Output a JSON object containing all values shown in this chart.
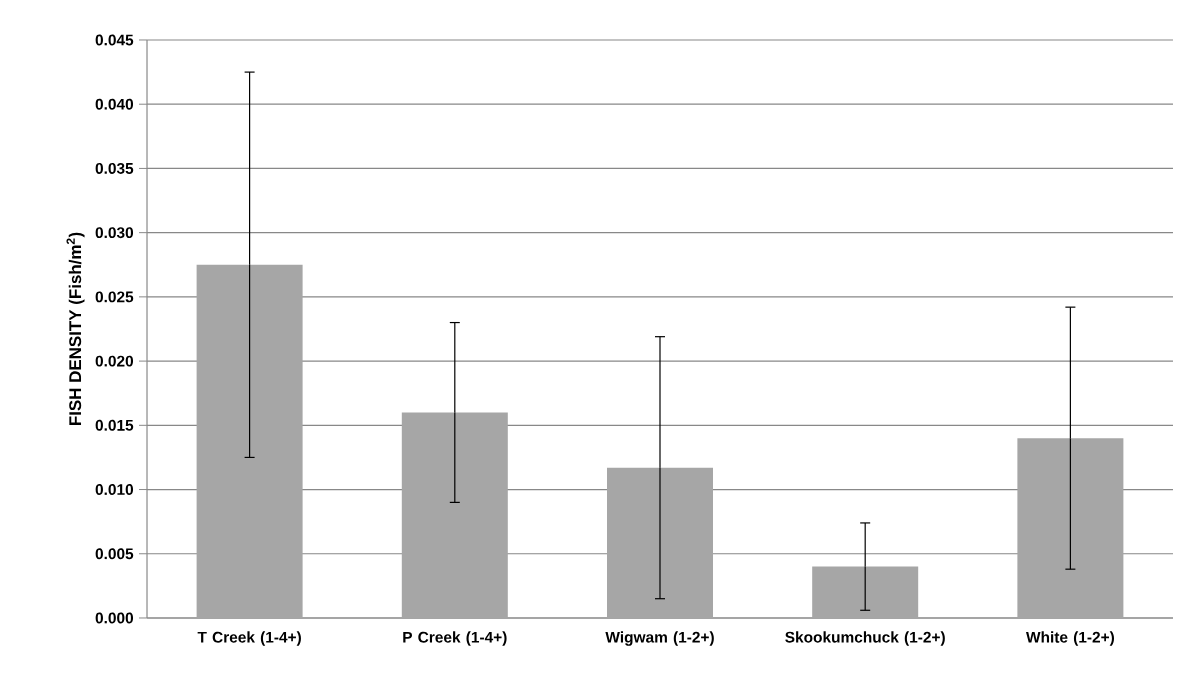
{
  "chart_data": {
    "type": "bar",
    "ylabel": "FISH DENSITY (Fish/m$^{2}$)",
    "categories": [
      "T Creek (1-4+)",
      "P Creek (1-4+)",
      "Wigwam (1-2+)",
      "Skookumchuck (1-2+)",
      "White (1-2+)"
    ],
    "values": [
      0.0275,
      0.016,
      0.0117,
      0.004,
      0.014
    ],
    "errors": [
      0.015,
      0.007,
      0.0102,
      0.0034,
      0.0102
    ],
    "color": "#a6a6a6",
    "ylim": [
      0,
      0.045
    ],
    "yticks": [
      {
        "value": 0,
        "label": "0.000"
      },
      {
        "value": 0.005,
        "label": "0.005"
      },
      {
        "value": 0.01,
        "label": "0.010"
      },
      {
        "value": 0.015,
        "label": "0.015"
      },
      {
        "value": 0.02,
        "label": "0.020"
      },
      {
        "value": 0.025,
        "label": "0.025"
      },
      {
        "value": 0.03,
        "label": "0.030"
      },
      {
        "value": 0.035,
        "label": "0.035"
      },
      {
        "value": 0.04,
        "label": "0.040"
      },
      {
        "value": 0.045,
        "label": "0.045"
      }
    ],
    "grid": "y"
  }
}
